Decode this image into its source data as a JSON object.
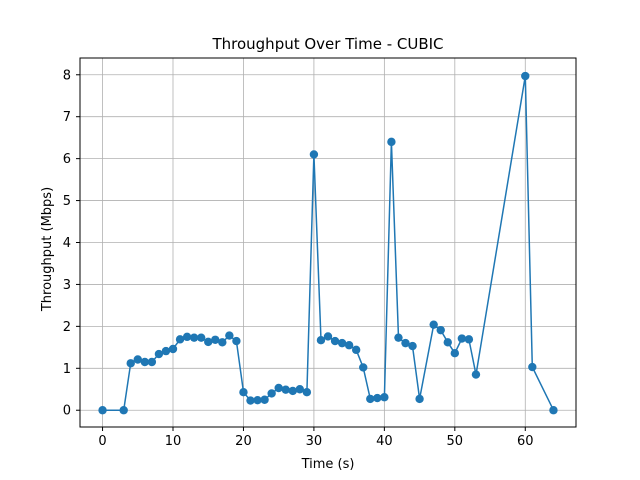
{
  "chart_data": {
    "type": "line",
    "title": "Throughput Over Time - CUBIC",
    "xlabel": "Time (s)",
    "ylabel": "Throughput (Mbps)",
    "xlim": [
      -3.2,
      67.2
    ],
    "ylim": [
      -0.4,
      8.4
    ],
    "xticks": [
      0,
      10,
      20,
      30,
      40,
      50,
      60
    ],
    "yticks": [
      0,
      1,
      2,
      3,
      4,
      5,
      6,
      7,
      8
    ],
    "grid": true,
    "color": "#1f77b4",
    "marker": "circle",
    "series": [
      {
        "x": [
          0,
          3,
          4,
          5,
          6,
          7,
          8,
          9,
          10,
          11,
          12,
          13,
          14,
          15,
          16,
          17,
          18,
          19,
          20,
          21,
          22,
          23,
          24,
          25,
          26,
          27,
          28,
          29,
          30,
          31,
          32,
          33,
          34,
          35,
          36,
          37,
          38,
          39,
          40,
          41,
          42,
          43,
          44,
          45,
          47,
          48,
          49,
          50,
          51,
          52,
          53,
          60,
          61,
          64
        ],
        "y": [
          0.0,
          0.0,
          1.12,
          1.21,
          1.15,
          1.15,
          1.34,
          1.41,
          1.46,
          1.69,
          1.75,
          1.73,
          1.73,
          1.63,
          1.68,
          1.62,
          1.78,
          1.65,
          0.43,
          0.23,
          0.24,
          0.25,
          0.4,
          0.53,
          0.49,
          0.46,
          0.5,
          0.43,
          6.1,
          1.67,
          1.76,
          1.65,
          1.6,
          1.55,
          1.44,
          1.02,
          0.27,
          0.29,
          0.31,
          6.4,
          1.73,
          1.6,
          1.53,
          0.27,
          2.04,
          1.91,
          1.62,
          1.36,
          1.71,
          1.69,
          0.85,
          7.97,
          1.03,
          0.0
        ]
      }
    ]
  }
}
